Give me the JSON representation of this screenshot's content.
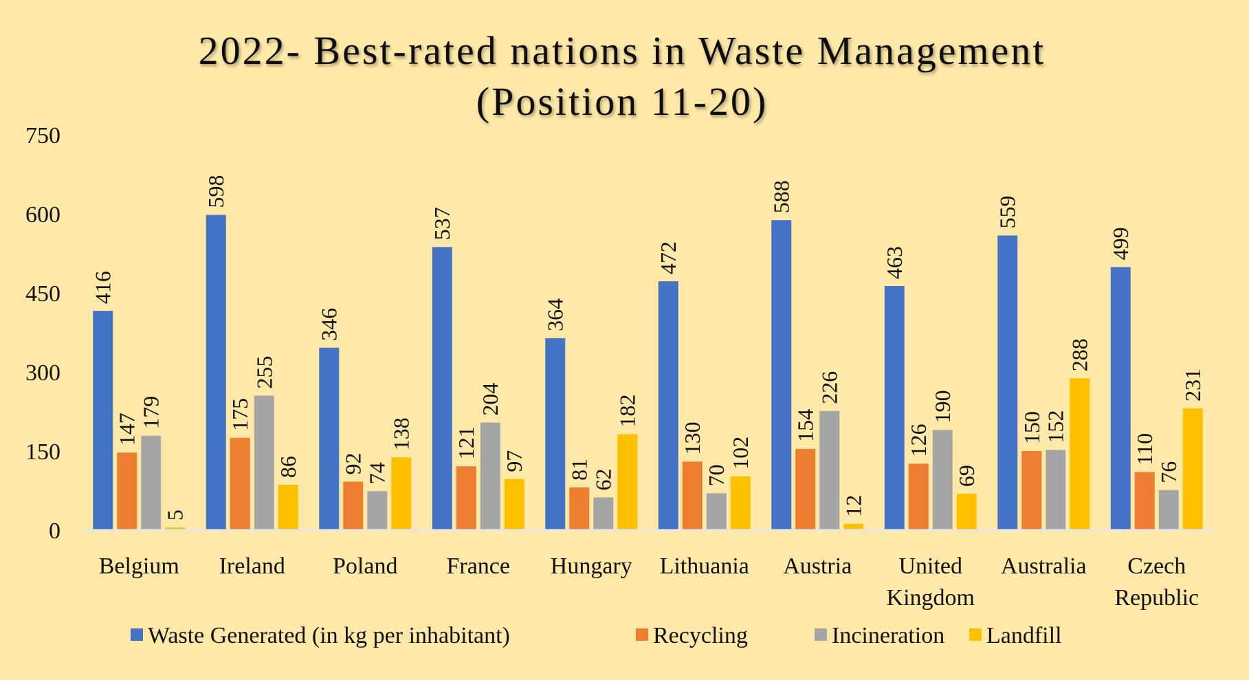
{
  "chart_data": {
    "type": "bar",
    "title_lines": [
      "2022- Best-rated nations in Waste Management",
      "(Position 11-20)"
    ],
    "categories": [
      [
        "Belgium"
      ],
      [
        "Ireland"
      ],
      [
        "Poland"
      ],
      [
        "France"
      ],
      [
        "Hungary"
      ],
      [
        "Lithuania"
      ],
      [
        "Austria"
      ],
      [
        "United",
        "Kingdom"
      ],
      [
        "Australia"
      ],
      [
        "Czech",
        "Republic"
      ]
    ],
    "series": [
      {
        "name": "Waste Generated (in kg per inhabitant)",
        "color": "#4472C4",
        "values": [
          416,
          598,
          346,
          537,
          364,
          472,
          588,
          463,
          559,
          499
        ]
      },
      {
        "name": "Recycling",
        "color": "#ED7D31",
        "values": [
          147,
          175,
          92,
          121,
          81,
          130,
          154,
          126,
          150,
          110
        ]
      },
      {
        "name": "Incineration",
        "color": "#A5A5A5",
        "values": [
          179,
          255,
          74,
          204,
          62,
          70,
          226,
          190,
          152,
          76
        ]
      },
      {
        "name": "Landfill",
        "color": "#FFC000",
        "values": [
          5,
          86,
          138,
          97,
          182,
          102,
          12,
          69,
          288,
          231
        ]
      }
    ],
    "y_ticks": [
      0,
      150,
      300,
      450,
      600,
      750
    ],
    "ylim": [
      0,
      750
    ],
    "xlabel": "",
    "ylabel": "",
    "grid": false,
    "legend_position": "bottom",
    "data_labels": true,
    "background_color": "#FFE9A8"
  }
}
